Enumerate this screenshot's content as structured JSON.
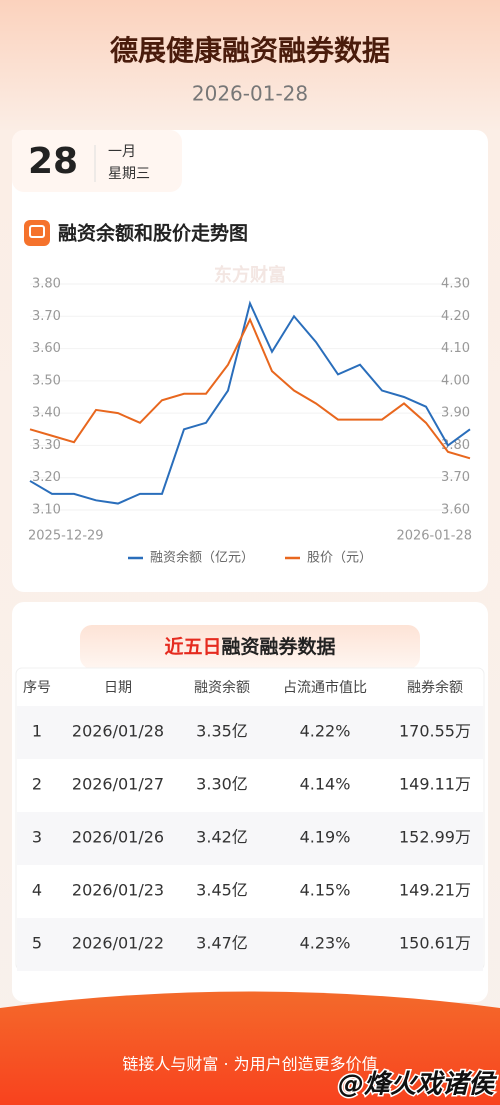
{
  "header": {
    "title": "德展健康融资融券数据",
    "date": "2026-01-28"
  },
  "date_card": {
    "day": "28",
    "month": "一月",
    "weekday": "星期三"
  },
  "chart_section": {
    "title": "融资余额和股价走势图",
    "watermark": "东方财富"
  },
  "chart_data": {
    "type": "line",
    "categories": [
      "2025-12-29",
      null,
      null,
      null,
      null,
      null,
      null,
      null,
      null,
      null,
      null,
      null,
      null,
      null,
      null,
      null,
      null,
      null,
      null,
      null,
      "2026-01-28"
    ],
    "series": [
      {
        "name": "融资余额（亿元）",
        "color": "#2a6ebb",
        "values": [
          3.19,
          3.15,
          3.15,
          3.13,
          3.12,
          3.15,
          3.15,
          3.35,
          3.37,
          3.47,
          3.74,
          3.59,
          3.7,
          3.62,
          3.52,
          3.55,
          3.47,
          3.45,
          3.42,
          3.3,
          3.35
        ]
      },
      {
        "name": "股价（元）",
        "color": "#e8671e",
        "axis": "y2",
        "values": [
          3.85,
          3.83,
          3.81,
          3.91,
          3.9,
          3.87,
          3.94,
          3.96,
          3.96,
          4.05,
          4.19,
          4.03,
          3.97,
          3.93,
          3.88,
          3.88,
          3.88,
          3.93,
          3.87,
          3.78,
          3.76
        ]
      }
    ],
    "ylim": [
      3.1,
      3.8
    ],
    "yticks": [
      {
        "value": 3.1,
        "label": "3.10"
      },
      {
        "value": 3.2,
        "label": "3.20"
      },
      {
        "value": 3.3,
        "label": "3.30"
      },
      {
        "value": 3.4,
        "label": "3.40"
      },
      {
        "value": 3.5,
        "label": "3.50"
      },
      {
        "value": 3.6,
        "label": "3.60"
      },
      {
        "value": 3.7,
        "label": "3.70"
      },
      {
        "value": 3.8,
        "label": "3.80"
      }
    ],
    "y2lim": [
      3.6,
      4.3
    ],
    "y2ticks": [
      {
        "value": 3.6,
        "label": "3.60"
      },
      {
        "value": 3.7,
        "label": "3.70"
      },
      {
        "value": 3.8,
        "label": "3.80"
      },
      {
        "value": 3.9,
        "label": "3.90"
      },
      {
        "value": 4.0,
        "label": "4.00"
      },
      {
        "value": 4.1,
        "label": "4.10"
      },
      {
        "value": 4.2,
        "label": "4.20"
      },
      {
        "value": 4.3,
        "label": "4.30"
      }
    ],
    "grid": true,
    "legend": "bottom"
  },
  "table_section": {
    "title_highlight": "近五日",
    "title_rest": "融资融券数据"
  },
  "table": {
    "columns": [
      "序号",
      "日期",
      "融资余额",
      "占流通市值比",
      "融券余额"
    ],
    "rows": [
      [
        "1",
        "2026/01/28",
        "3.35亿",
        "4.22%",
        "170.55万"
      ],
      [
        "2",
        "2026/01/27",
        "3.30亿",
        "4.14%",
        "149.11万"
      ],
      [
        "3",
        "2026/01/26",
        "3.42亿",
        "4.19%",
        "152.99万"
      ],
      [
        "4",
        "2026/01/23",
        "3.45亿",
        "4.15%",
        "149.21万"
      ],
      [
        "5",
        "2026/01/22",
        "3.47亿",
        "4.23%",
        "150.61万"
      ]
    ]
  },
  "footer": {
    "slogan": "链接人与财富 · 为用户创造更多价值",
    "watermark": "@烽火戏诸侯"
  }
}
